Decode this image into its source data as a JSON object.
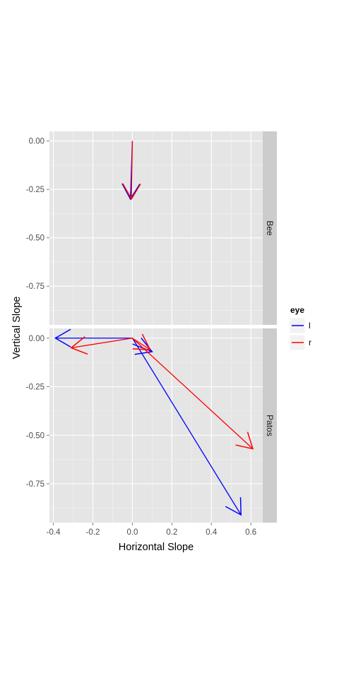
{
  "chart_data": {
    "type": "vector-field",
    "xlabel": "Horizontal Slope",
    "ylabel": "Vertical Slope",
    "xlim": [
      -0.42,
      0.66
    ],
    "ylim": [
      -0.95,
      0.05
    ],
    "x_ticks": [
      -0.4,
      -0.2,
      0.0,
      0.2,
      0.4,
      0.6
    ],
    "x_tick_labels": [
      "-0.4",
      "-0.2",
      "0.0",
      "0.2",
      "0.4",
      "0.6"
    ],
    "y_ticks": [
      0.0,
      -0.25,
      -0.5,
      -0.75
    ],
    "y_tick_labels": [
      "0.00",
      "-0.25",
      "-0.50",
      "-0.75"
    ],
    "grid": true,
    "legend": {
      "title": "eye",
      "position": "right",
      "entries": [
        {
          "label": "l",
          "color": "#0000ff"
        },
        {
          "label": "r",
          "color": "#ff0000"
        }
      ]
    },
    "panels": [
      {
        "strip": "Bee",
        "arrows": [
          {
            "eye": "l",
            "x0": 0.0,
            "y0": 0.0,
            "x1": -0.01,
            "y1": -0.3
          },
          {
            "eye": "r",
            "x0": 0.0,
            "y0": 0.0,
            "x1": -0.005,
            "y1": -0.3
          }
        ]
      },
      {
        "strip": "Patos",
        "arrows": [
          {
            "eye": "l",
            "x0": 0.0,
            "y0": 0.0,
            "x1": -0.39,
            "y1": 0.0
          },
          {
            "eye": "l",
            "x0": 0.0,
            "y0": 0.0,
            "x1": 0.55,
            "y1": -0.91
          },
          {
            "eye": "l",
            "x0": 0.0,
            "y0": -0.03,
            "x1": 0.1,
            "y1": -0.07
          },
          {
            "eye": "r",
            "x0": 0.0,
            "y0": 0.0,
            "x1": -0.31,
            "y1": -0.05
          },
          {
            "eye": "r",
            "x0": 0.0,
            "y0": 0.0,
            "x1": 0.61,
            "y1": -0.57
          },
          {
            "eye": "r",
            "x0": 0.0,
            "y0": 0.0,
            "x1": 0.09,
            "y1": -0.06
          }
        ]
      }
    ]
  }
}
